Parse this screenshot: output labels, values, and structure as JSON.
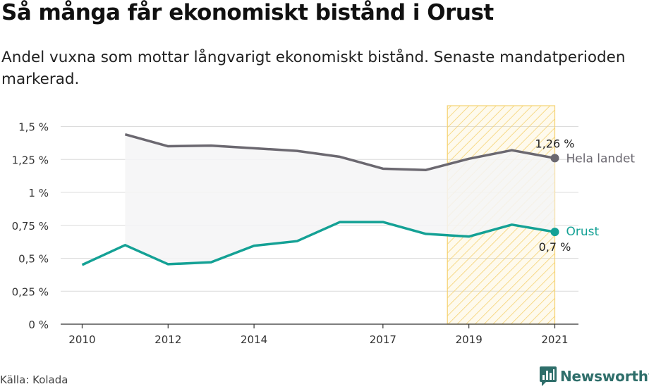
{
  "title": "Så många får ekonomiskt bistånd i Orust",
  "subtitle": "Andel vuxna som mottar långvarigt ekonomiskt bistånd. Senaste mandatperioden markerad.",
  "source": "Källa: Kolada",
  "brand": "Newsworthy",
  "colors": {
    "series_national": "#6b6870",
    "series_local": "#14a195",
    "highlight_fill": "#fbe49a",
    "highlight_border": "#f5d270",
    "area_fill": "#f5f5f6",
    "grid": "#dcdcdc",
    "brand": "#2e6e6a"
  },
  "chart_data": {
    "type": "line",
    "x": [
      2010,
      2011,
      2012,
      2013,
      2014,
      2015,
      2016,
      2017,
      2018,
      2019,
      2020,
      2021
    ],
    "series": [
      {
        "name": "Hela landet",
        "values": [
          null,
          1.44,
          1.35,
          1.355,
          1.335,
          1.315,
          1.27,
          1.18,
          1.17,
          1.255,
          1.32,
          1.26
        ],
        "end_label": "1,26 %"
      },
      {
        "name": "Orust",
        "values": [
          0.45,
          0.6,
          0.455,
          0.47,
          0.595,
          0.63,
          0.775,
          0.775,
          0.685,
          0.665,
          0.755,
          0.7
        ],
        "end_label": "0,7 %"
      }
    ],
    "yticks": [
      0,
      0.25,
      0.5,
      0.75,
      1,
      1.25,
      1.5
    ],
    "ytick_labels": [
      "0 %",
      "0,25 %",
      "0,5 %",
      "0,75 %",
      "1 %",
      "1,25 %",
      "1,5 %"
    ],
    "xticks": [
      2010,
      2012,
      2014,
      2017,
      2019,
      2021
    ],
    "xtick_labels": [
      "2010",
      "2012",
      "2014",
      "2017",
      "2019",
      "2021"
    ],
    "xlim": [
      2009.5,
      2021.55
    ],
    "ylim": [
      0,
      1.6
    ],
    "highlight": [
      2018.5,
      2021
    ],
    "grid": true,
    "xlabel": "",
    "ylabel": ""
  }
}
